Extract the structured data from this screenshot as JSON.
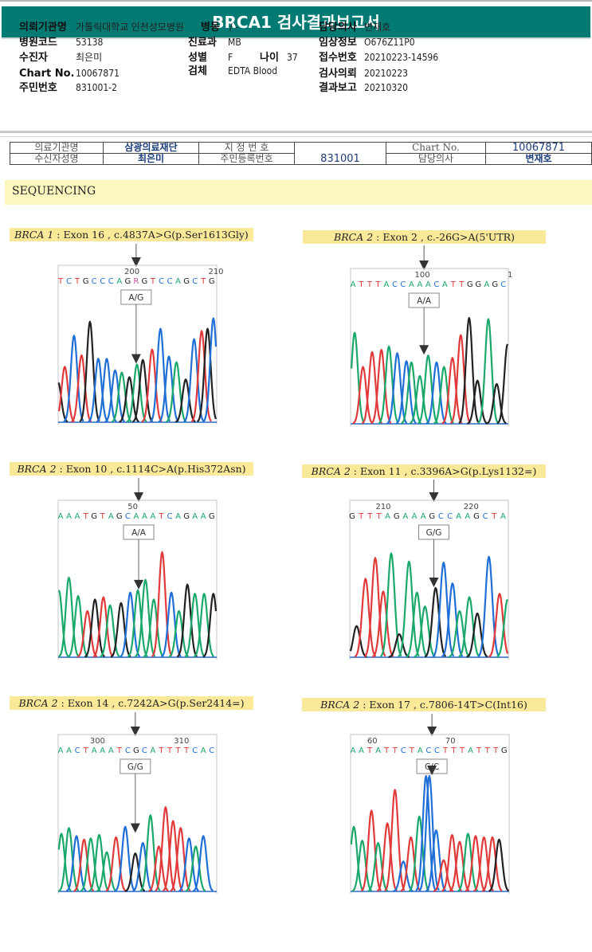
{
  "report": {
    "title": "BRCA1 검사결과보고서",
    "fields_left": [
      {
        "label": "의뢰기관명",
        "value": "가톨릭대학교 인천성모병원"
      },
      {
        "label": "병원코드",
        "value": "53138"
      },
      {
        "label": "수진자",
        "value": "최은미"
      },
      {
        "label": "Chart No.",
        "value": "10067871"
      },
      {
        "label": "주민번호",
        "value": "831001-2"
      }
    ],
    "fields_mid": [
      {
        "label": "병동",
        "value": "/ -"
      },
      {
        "label": "진료과",
        "value": "MB"
      },
      {
        "label": "성별",
        "value": "F"
      },
      {
        "label": "나이",
        "value": "37"
      },
      {
        "label": "검체",
        "value": "EDTA Blood"
      }
    ],
    "fields_right": [
      {
        "label": "담당의사",
        "value": "변재호"
      },
      {
        "label": "임상정보",
        "value": "O676Z11P0"
      },
      {
        "label": "접수번호",
        "value": "20210223-14596"
      },
      {
        "label": "검사의뢰",
        "value": "20210223"
      },
      {
        "label": "결과보고",
        "value": "20210320"
      }
    ]
  },
  "scan_header": {
    "row1": [
      "의료기관명",
      "삼광의료재단",
      "지 정 번 호",
      "",
      "Chart No.",
      "10067871"
    ],
    "row2": [
      "수신자성명",
      "최은미",
      "주민등록번호",
      "831001",
      "담당의사",
      "변재호"
    ]
  },
  "section": {
    "title": "SEQUENCING"
  },
  "panels": [
    {
      "gene": "BRCA 1",
      "detail": ": Exon 16 , c.4837A>G(p.Ser1613Gly)",
      "genotype": "A/G",
      "ticks": [
        {
          "label": "200",
          "pos": 8.5
        },
        {
          "label": "210",
          "pos": 18.5
        }
      ],
      "bases": "TCTGCCCAGRGTCCAGCTG",
      "arrow_base": 9,
      "peaks": [
        {
          "b": "G",
          "h": 0.35,
          "p": -0.3
        },
        {
          "b": "T",
          "h": 0.48,
          "p": 0.5
        },
        {
          "b": "C",
          "h": 0.75,
          "p": 1.6
        },
        {
          "b": "T",
          "h": 0.58,
          "p": 2.5
        },
        {
          "b": "G",
          "h": 0.87,
          "p": 3.5
        },
        {
          "b": "C",
          "h": 0.55,
          "p": 4.5
        },
        {
          "b": "C",
          "h": 0.55,
          "p": 5.5
        },
        {
          "b": "C",
          "h": 0.45,
          "p": 6.5
        },
        {
          "b": "A",
          "h": 0.43,
          "p": 7.3
        },
        {
          "b": "G",
          "h": 0.39,
          "p": 8.2
        },
        {
          "b": "A",
          "h": 0.5,
          "p": 9.1
        },
        {
          "b": "G",
          "h": 0.54,
          "p": 9.8
        },
        {
          "b": "T",
          "h": 0.63,
          "p": 10.9
        },
        {
          "b": "C",
          "h": 0.81,
          "p": 11.9
        },
        {
          "b": "C",
          "h": 0.57,
          "p": 12.9
        },
        {
          "b": "A",
          "h": 0.52,
          "p": 13.8
        },
        {
          "b": "G",
          "h": 0.37,
          "p": 14.9
        },
        {
          "b": "C",
          "h": 0.72,
          "p": 15.9
        },
        {
          "b": "T",
          "h": 0.79,
          "p": 16.8
        },
        {
          "b": "G",
          "h": 0.81,
          "p": 17.5
        },
        {
          "b": "C",
          "h": 0.9,
          "p": 18.2
        }
      ]
    },
    {
      "gene": "BRCA 2",
      "detail": ": Exon 2 , c.-26G>A(5'UTR)",
      "genotype": "A/A",
      "ticks": [
        {
          "label": "100",
          "pos": 8.3
        },
        {
          "label": "1",
          "pos": 18.8
        }
      ],
      "bases": "ATTTACCAAACATTGGAGC",
      "arrow_base": 8.5,
      "peaks": [
        {
          "b": "A",
          "h": 0.8,
          "p": 0.2
        },
        {
          "b": "T",
          "h": 0.5,
          "p": 1.2
        },
        {
          "b": "T",
          "h": 0.63,
          "p": 2.3
        },
        {
          "b": "T",
          "h": 0.65,
          "p": 3.4
        },
        {
          "b": "A",
          "h": 0.68,
          "p": 4.3
        },
        {
          "b": "C",
          "h": 0.62,
          "p": 5.3
        },
        {
          "b": "C",
          "h": 0.55,
          "p": 6.4
        },
        {
          "b": "A",
          "h": 0.54,
          "p": 7.0
        },
        {
          "b": "A",
          "h": 0.42,
          "p": 8.0
        },
        {
          "b": "A",
          "h": 0.6,
          "p": 9.0
        },
        {
          "b": "C",
          "h": 0.54,
          "p": 10.0
        },
        {
          "b": "A",
          "h": 0.5,
          "p": 10.9
        },
        {
          "b": "T",
          "h": 0.58,
          "p": 11.9
        },
        {
          "b": "T",
          "h": 0.78,
          "p": 12.9
        },
        {
          "b": "G",
          "h": 0.93,
          "p": 13.9
        },
        {
          "b": "G",
          "h": 0.38,
          "p": 14.9
        },
        {
          "b": "A",
          "h": 0.92,
          "p": 16.2
        },
        {
          "b": "G",
          "h": 0.35,
          "p": 17.2
        },
        {
          "b": "G",
          "h": 0.7,
          "p": 18.5
        }
      ]
    },
    {
      "gene": "BRCA 2",
      "detail": ": Exon 10 , c.1114C>A(p.His372Asn)",
      "genotype": "A/A",
      "ticks": [
        {
          "label": "50",
          "pos": 8.6
        }
      ],
      "bases": "AAATGTAGCAAATCAGAAG",
      "arrow_base": 9.3,
      "peaks": [
        {
          "b": "A",
          "h": 0.58,
          "p": -0.2
        },
        {
          "b": "A",
          "h": 0.69,
          "p": 1.0
        },
        {
          "b": "A",
          "h": 0.53,
          "p": 2.1
        },
        {
          "b": "T",
          "h": 0.4,
          "p": 3.2
        },
        {
          "b": "G",
          "h": 0.5,
          "p": 4.1
        },
        {
          "b": "T",
          "h": 0.52,
          "p": 5.1
        },
        {
          "b": "A",
          "h": 0.45,
          "p": 5.9
        },
        {
          "b": "G",
          "h": 0.47,
          "p": 7.2
        },
        {
          "b": "C",
          "h": 0.56,
          "p": 8.3
        },
        {
          "b": "A",
          "h": 0.58,
          "p": 9.2
        },
        {
          "b": "A",
          "h": 0.67,
          "p": 10.1
        },
        {
          "b": "A",
          "h": 0.5,
          "p": 11.1
        },
        {
          "b": "T",
          "h": 0.91,
          "p": 12.1
        },
        {
          "b": "C",
          "h": 0.56,
          "p": 13.2
        },
        {
          "b": "A",
          "h": 0.4,
          "p": 14.1
        },
        {
          "b": "G",
          "h": 0.63,
          "p": 15.1
        },
        {
          "b": "A",
          "h": 0.55,
          "p": 16.0
        },
        {
          "b": "A",
          "h": 0.55,
          "p": 17.1
        },
        {
          "b": "G",
          "h": 0.55,
          "p": 18.2
        }
      ]
    },
    {
      "gene": "BRCA 2",
      "detail": ": Exon 11 , c.3396A>G(p.Lys1132=)",
      "genotype": "G/G",
      "ticks": [
        {
          "label": "210",
          "pos": 3.5
        },
        {
          "label": "220",
          "pos": 13.4
        }
      ],
      "bases": "GTTTAGAAAGCCAAGCTA",
      "arrow_base": 9.2,
      "peaks": [
        {
          "b": "G",
          "h": 0.27,
          "p": 0.5
        },
        {
          "b": "T",
          "h": 0.68,
          "p": 1.5
        },
        {
          "b": "T",
          "h": 0.86,
          "p": 2.6
        },
        {
          "b": "T",
          "h": 0.57,
          "p": 3.5
        },
        {
          "b": "A",
          "h": 0.9,
          "p": 4.4
        },
        {
          "b": "G",
          "h": 0.2,
          "p": 5.3
        },
        {
          "b": "A",
          "h": 0.83,
          "p": 6.4
        },
        {
          "b": "A",
          "h": 0.56,
          "p": 7.3
        },
        {
          "b": "A",
          "h": 0.44,
          "p": 8.2
        },
        {
          "b": "G",
          "h": 0.6,
          "p": 9.4
        },
        {
          "b": "C",
          "h": 0.82,
          "p": 10.3
        },
        {
          "b": "C",
          "h": 0.64,
          "p": 11.3
        },
        {
          "b": "A",
          "h": 0.4,
          "p": 12.1
        },
        {
          "b": "A",
          "h": 0.52,
          "p": 13.2
        },
        {
          "b": "G",
          "h": 0.38,
          "p": 14.1
        },
        {
          "b": "C",
          "h": 0.87,
          "p": 15.4
        },
        {
          "b": "T",
          "h": 0.55,
          "p": 16.6
        },
        {
          "b": "A",
          "h": 0.5,
          "p": 17.5
        }
      ]
    },
    {
      "gene": "BRCA 2",
      "detail": ": Exon 14 , c.7242A>G(p.Ser2414=)",
      "genotype": "G/G",
      "ticks": [
        {
          "label": "300",
          "pos": 4.4
        },
        {
          "label": "310",
          "pos": 14.4
        }
      ],
      "bases": "AACTAAATCGCATTTTCAC",
      "arrow_base": 8.9,
      "peaks": [
        {
          "b": "A",
          "h": 0.5,
          "p": 0.1
        },
        {
          "b": "A",
          "h": 0.55,
          "p": 1.0
        },
        {
          "b": "C",
          "h": 0.48,
          "p": 1.9
        },
        {
          "b": "T",
          "h": 0.45,
          "p": 2.8
        },
        {
          "b": "A",
          "h": 0.46,
          "p": 3.6
        },
        {
          "b": "A",
          "h": 0.49,
          "p": 4.6
        },
        {
          "b": "A",
          "h": 0.34,
          "p": 5.5
        },
        {
          "b": "T",
          "h": 0.47,
          "p": 6.6
        },
        {
          "b": "C",
          "h": 0.56,
          "p": 7.7
        },
        {
          "b": "G",
          "h": 0.33,
          "p": 8.9
        },
        {
          "b": "C",
          "h": 0.42,
          "p": 9.8
        },
        {
          "b": "A",
          "h": 0.66,
          "p": 10.7
        },
        {
          "b": "T",
          "h": 0.39,
          "p": 11.7
        },
        {
          "b": "T",
          "h": 0.73,
          "p": 12.5
        },
        {
          "b": "T",
          "h": 0.61,
          "p": 13.4
        },
        {
          "b": "T",
          "h": 0.55,
          "p": 14.3
        },
        {
          "b": "C",
          "h": 0.46,
          "p": 15.3
        },
        {
          "b": "A",
          "h": 0.39,
          "p": 16.1
        },
        {
          "b": "C",
          "h": 0.48,
          "p": 17.0
        }
      ]
    },
    {
      "gene": "BRCA 2",
      "detail": ": Exon 17 , c.7806-14T>C(Int16)",
      "genotype": "C/C",
      "ticks": [
        {
          "label": "60",
          "pos": 2.3
        },
        {
          "label": "70",
          "pos": 11.6
        }
      ],
      "bases": "AATATTCTACCTTTATTTG",
      "arrow_base": 9.4,
      "peaks": [
        {
          "b": "A",
          "h": 0.56,
          "p": 0.1
        },
        {
          "b": "A",
          "h": 0.44,
          "p": 1.1
        },
        {
          "b": "T",
          "h": 0.7,
          "p": 2.2
        },
        {
          "b": "A",
          "h": 0.42,
          "p": 3.0
        },
        {
          "b": "T",
          "h": 0.59,
          "p": 4.1
        },
        {
          "b": "T",
          "h": 0.88,
          "p": 5.0
        },
        {
          "b": "C",
          "h": 0.26,
          "p": 6.0
        },
        {
          "b": "T",
          "h": 0.47,
          "p": 6.9
        },
        {
          "b": "A",
          "h": 0.65,
          "p": 7.9
        },
        {
          "b": "C",
          "h": 1.0,
          "p": 8.7
        },
        {
          "b": "C",
          "h": 1.0,
          "p": 9.1
        },
        {
          "b": "C",
          "h": 0.53,
          "p": 9.9
        },
        {
          "b": "T",
          "h": 0.27,
          "p": 10.8
        },
        {
          "b": "T",
          "h": 0.49,
          "p": 11.8
        },
        {
          "b": "T",
          "h": 0.43,
          "p": 12.7
        },
        {
          "b": "A",
          "h": 0.5,
          "p": 13.7
        },
        {
          "b": "T",
          "h": 0.48,
          "p": 14.6
        },
        {
          "b": "T",
          "h": 0.47,
          "p": 15.6
        },
        {
          "b": "T",
          "h": 0.47,
          "p": 16.6
        },
        {
          "b": "G",
          "h": 0.45,
          "p": 17.4
        }
      ]
    }
  ],
  "colors": {
    "banner": "#007a73",
    "base_A": "#1aa86b",
    "base_C": "#1f6fd6",
    "base_G": "#222222",
    "base_T": "#e03a3a",
    "base_R": "#c0509a",
    "caption_bg": "#fbe99a",
    "section_bg": "#fbf7bf"
  }
}
